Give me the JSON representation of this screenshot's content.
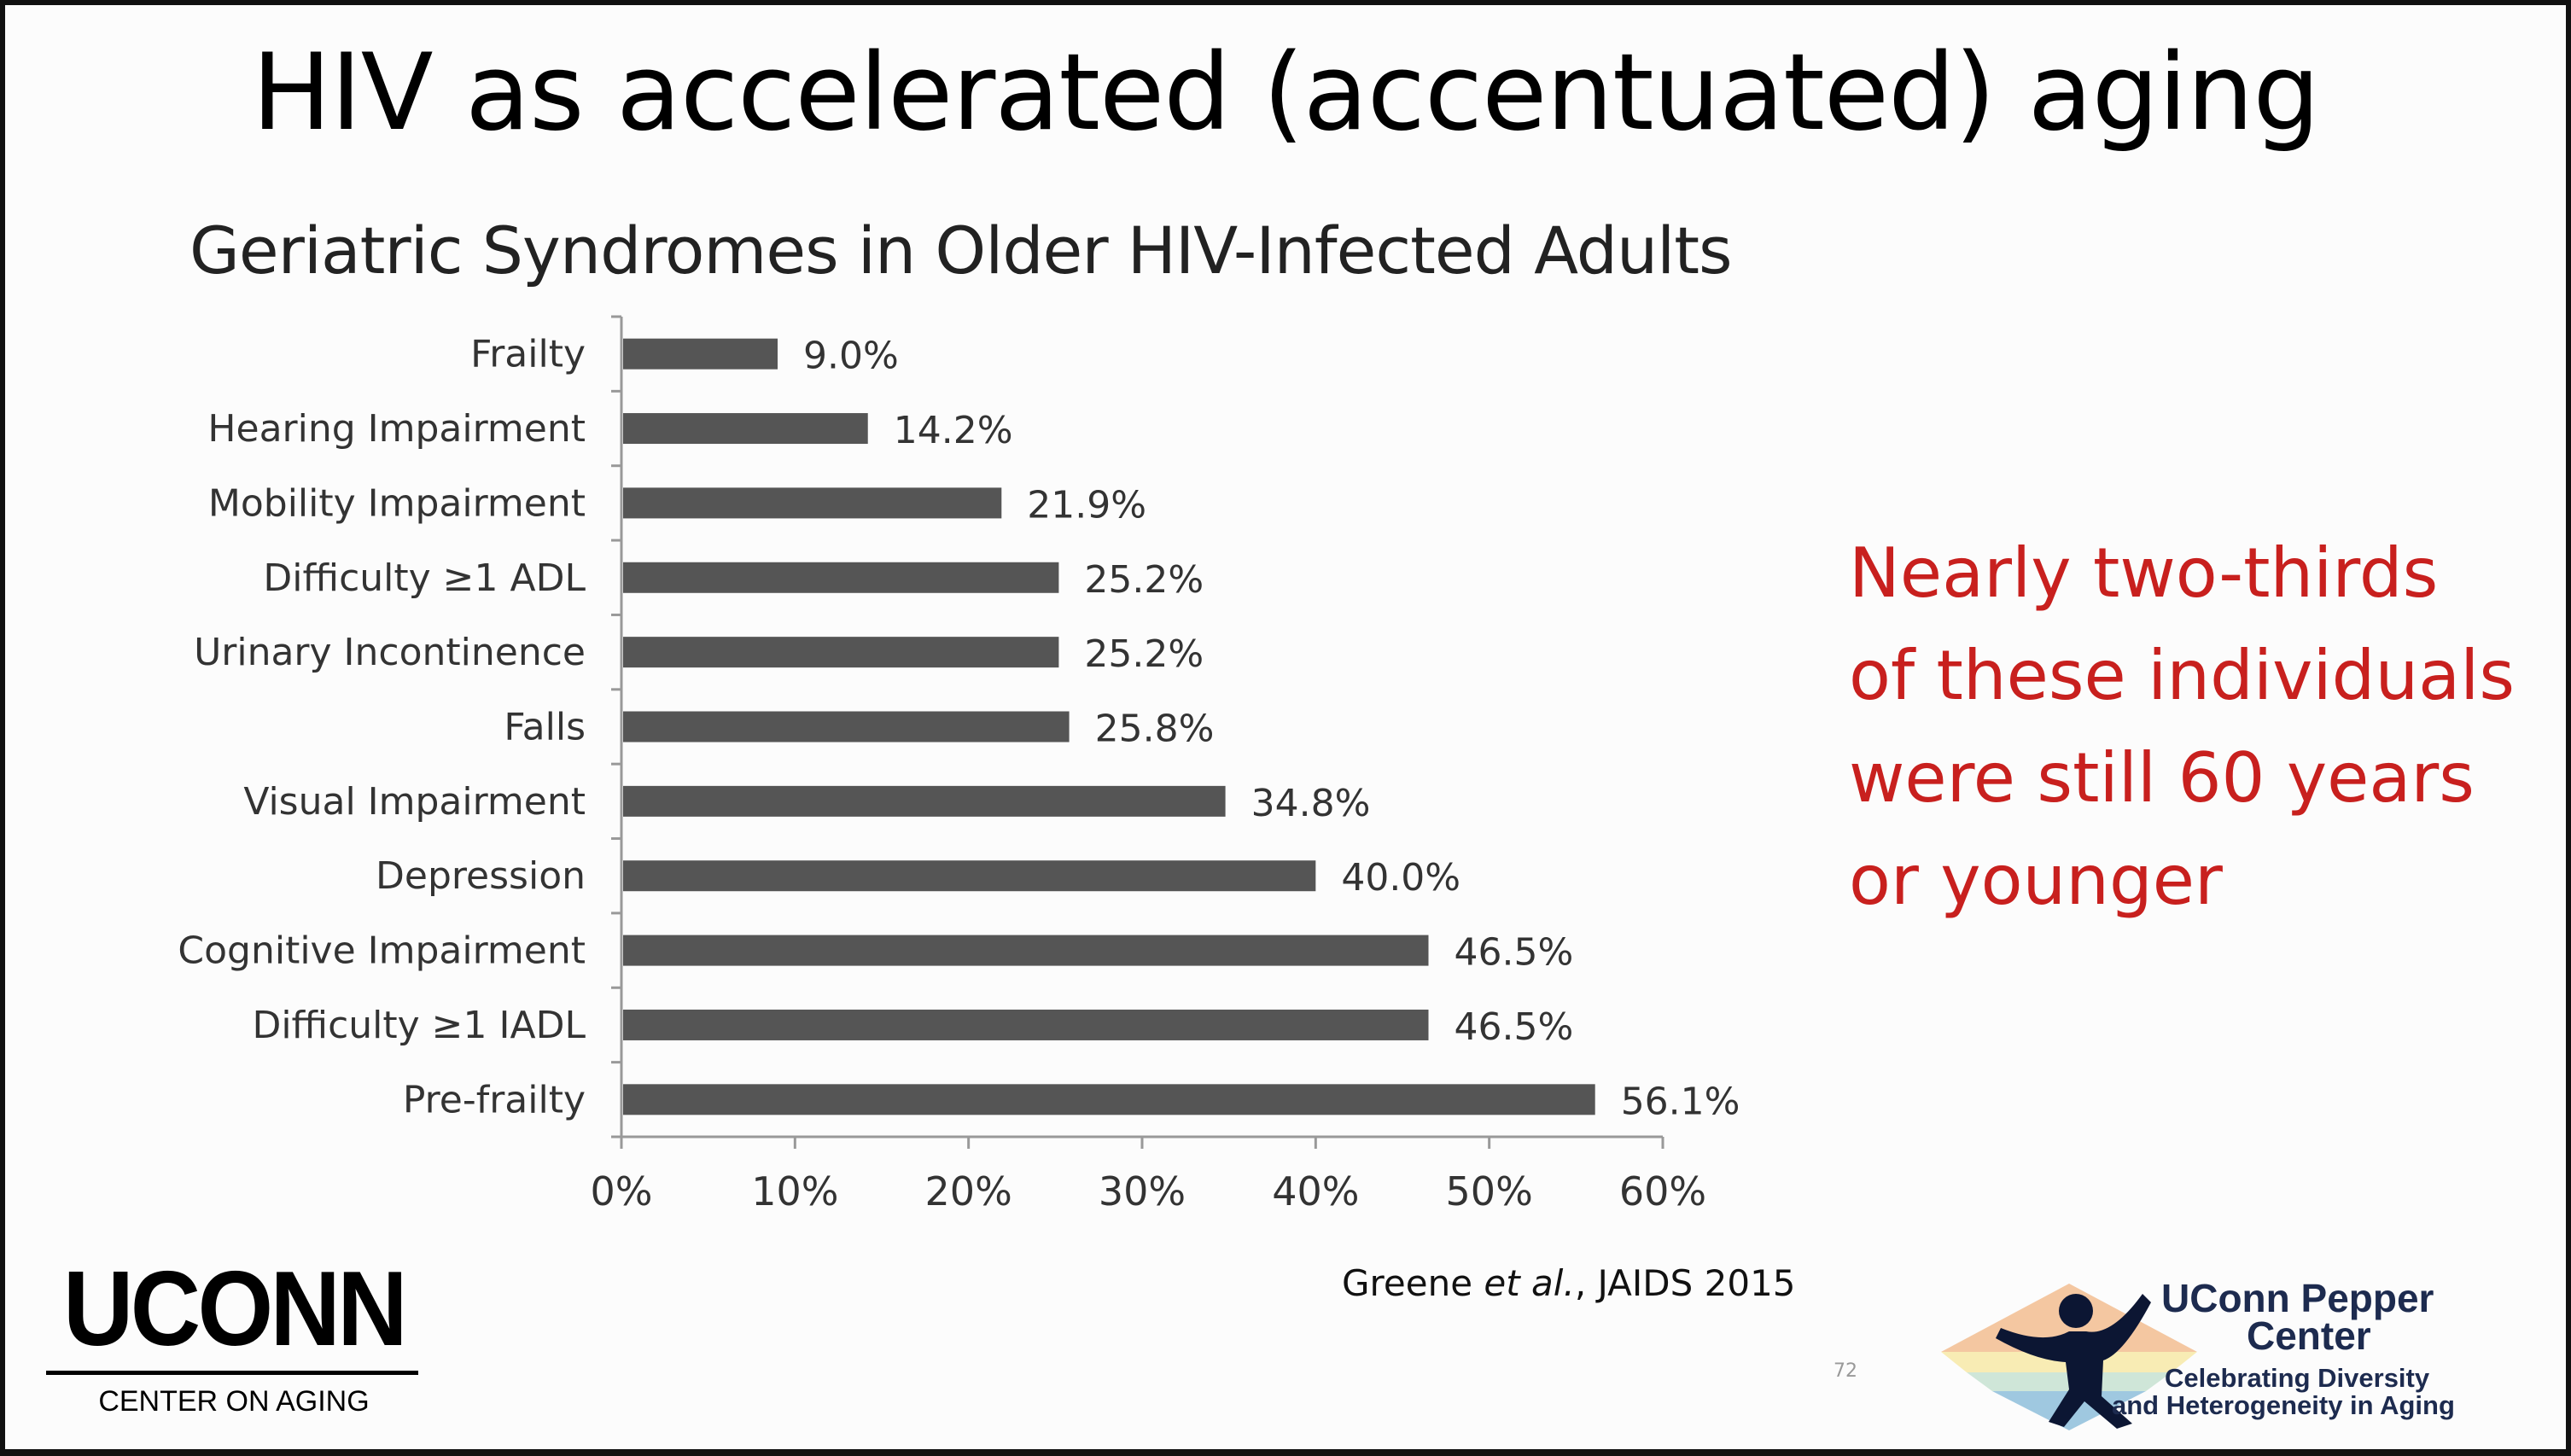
{
  "slide": {
    "title": "HIV as accelerated (accentuated) aging",
    "callout_lines": [
      "Nearly two-thirds",
      "of these individuals",
      "were still 60 years",
      "or younger"
    ],
    "citation_prefix": "Greene ",
    "citation_italic": "et al.",
    "citation_suffix": ", JAIDS 2015",
    "page_number": "72",
    "uconn_logo": {
      "word": "UCONN",
      "subtitle": "CENTER ON AGING"
    },
    "pepper_logo": {
      "line1": "UConn Pepper",
      "line2": "Center",
      "line3": "Celebrating Diversity",
      "line4": "and Heterogeneity in Aging"
    },
    "colors": {
      "bar": "#555555",
      "callout": "#c8201e",
      "axis": "#999999"
    }
  },
  "chart_data": {
    "type": "bar",
    "orientation": "horizontal",
    "title": "Geriatric Syndromes in Older HIV-Infected Adults",
    "categories": [
      "Frailty",
      "Hearing Impairment",
      "Mobility Impairment",
      "Difficulty ≥1 ADL",
      "Urinary Incontinence",
      "Falls",
      "Visual Impairment",
      "Depression",
      "Cognitive Impairment",
      "Difficulty ≥1 IADL",
      "Pre-frailty"
    ],
    "values": [
      9.0,
      14.2,
      21.9,
      25.2,
      25.2,
      25.8,
      34.8,
      40.0,
      46.5,
      46.5,
      56.1
    ],
    "value_labels": [
      "9.0%",
      "14.2%",
      "21.9%",
      "25.2%",
      "25.2%",
      "25.8%",
      "34.8%",
      "40.0%",
      "46.5%",
      "46.5%",
      "56.1%"
    ],
    "xlim": [
      0,
      60
    ],
    "xticks": [
      0,
      10,
      20,
      30,
      40,
      50,
      60
    ],
    "xtick_labels": [
      "0%",
      "10%",
      "20%",
      "30%",
      "40%",
      "50%",
      "60%"
    ],
    "xlabel": "",
    "ylabel": "",
    "grid": false,
    "legend": "none"
  }
}
